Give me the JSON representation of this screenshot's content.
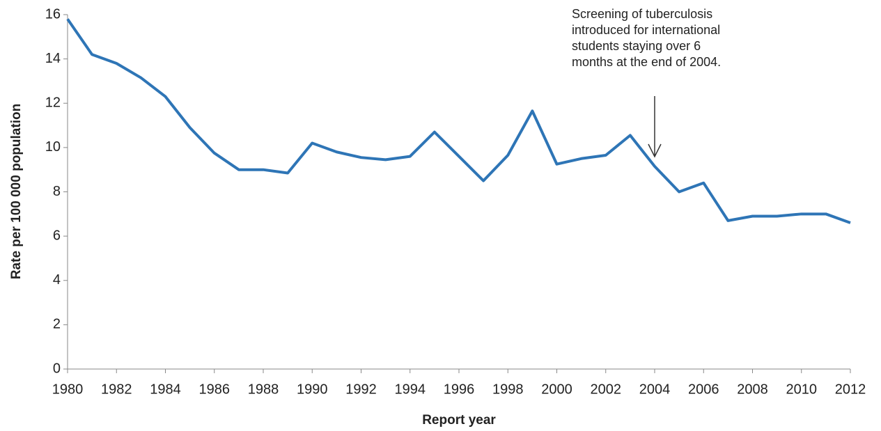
{
  "chart_data": {
    "type": "line",
    "x_label": "Report year",
    "y_label": "Rate per 100 000 population",
    "x": [
      1980,
      1981,
      1982,
      1983,
      1984,
      1985,
      1986,
      1987,
      1988,
      1989,
      1990,
      1991,
      1992,
      1993,
      1994,
      1995,
      1996,
      1997,
      1998,
      1999,
      2000,
      2001,
      2002,
      2003,
      2004,
      2005,
      2006,
      2007,
      2008,
      2009,
      2010,
      2011,
      2012
    ],
    "series": [
      {
        "color": "#2e75b6",
        "values": [
          15.8,
          14.2,
          13.8,
          13.15,
          12.3,
          10.9,
          9.75,
          9.0,
          9.0,
          8.85,
          10.2,
          9.8,
          9.55,
          9.45,
          9.6,
          10.7,
          9.6,
          8.5,
          9.65,
          11.65,
          9.25,
          9.5,
          9.65,
          10.55,
          9.15,
          8.0,
          8.4,
          6.7,
          6.9,
          6.9,
          7.0,
          7.0,
          6.6
        ]
      }
    ],
    "xlim": [
      1980,
      2012
    ],
    "xticks": [
      1980,
      1982,
      1984,
      1986,
      1988,
      1990,
      1992,
      1994,
      1996,
      1998,
      2000,
      2002,
      2004,
      2006,
      2008,
      2010,
      2012
    ],
    "ylim": [
      0,
      16
    ],
    "yticks": [
      0,
      2,
      4,
      6,
      8,
      10,
      12,
      14,
      16
    ],
    "annotation": {
      "x": 2004,
      "lines": [
        "Screening of tuberculosis",
        "introduced for international",
        "students staying over 6",
        "months at the end of 2004."
      ]
    }
  }
}
